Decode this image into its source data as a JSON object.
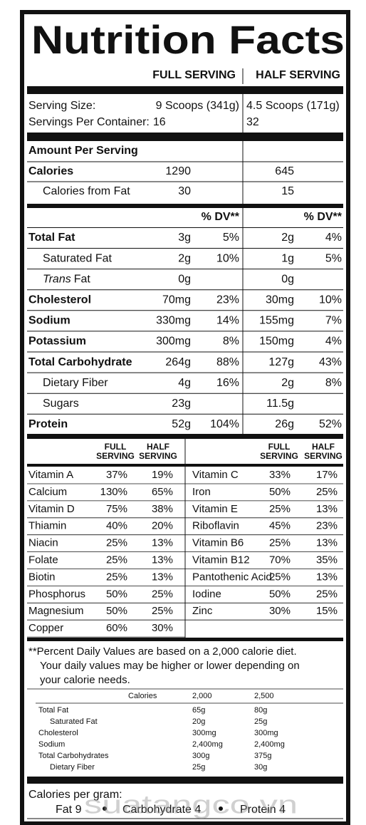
{
  "title": "Nutrition Facts",
  "column_headers": [
    "FULL SERVING",
    "HALF SERVING"
  ],
  "serving": {
    "size_label": "Serving Size:",
    "size_full": "9 Scoops (341g)",
    "size_half": "4.5 Scoops (171g)",
    "per_container_label": "Servings Per Container:",
    "per_container_full": "16",
    "per_container_half": "32"
  },
  "amount_per_serving": "Amount Per Serving",
  "calories": {
    "name": "Calories",
    "full": "1290",
    "half": "645"
  },
  "calories_from_fat": {
    "name": "Calories from Fat",
    "full": "30",
    "half": "15"
  },
  "dv_headers": [
    "% DV**",
    "% DV**"
  ],
  "nutrients": [
    {
      "name": "Total Fat",
      "full": "3g",
      "full_dv": "5%",
      "half": "2g",
      "half_dv": "4%",
      "style": "bold"
    },
    {
      "name": "Saturated Fat",
      "full": "2g",
      "full_dv": "10%",
      "half": "1g",
      "half_dv": "5%",
      "style": "indent"
    },
    {
      "name_prefix": "Trans",
      "name": "Fat",
      "full": "0g",
      "half": "0g",
      "style": "indent"
    },
    {
      "name": "Cholesterol",
      "full": "70mg",
      "full_dv": "23%",
      "half": "30mg",
      "half_dv": "10%",
      "style": "bold"
    },
    {
      "name": "Sodium",
      "full": "330mg",
      "full_dv": "14%",
      "half": "155mg",
      "half_dv": "7%",
      "style": "bold"
    },
    {
      "name": "Potassium",
      "full": "300mg",
      "full_dv": "8%",
      "half": "150mg",
      "half_dv": "4%",
      "style": "bold"
    },
    {
      "name": "Total Carbohydrate",
      "full": "264g",
      "full_dv": "88%",
      "half": "127g",
      "half_dv": "43%",
      "style": "bold"
    },
    {
      "name": "Dietary Fiber",
      "full": "4g",
      "full_dv": "16%",
      "half": "2g",
      "half_dv": "8%",
      "style": "indent"
    },
    {
      "name": "Sugars",
      "full": "23g",
      "half": "11.5g",
      "style": "indent"
    },
    {
      "name": "Protein",
      "full": "52g",
      "full_dv": "104%",
      "half": "26g",
      "half_dv": "52%",
      "style": "bold"
    }
  ],
  "vitamin_headers": [
    "FULL SERVING",
    "HALF SERVING",
    "FULL SERVING",
    "HALF SERVING"
  ],
  "vitamins_left": [
    [
      "Vitamin A",
      "37%",
      "19%"
    ],
    [
      "Calcium",
      "130%",
      "65%"
    ],
    [
      "Vitamin D",
      "75%",
      "38%"
    ],
    [
      "Thiamin",
      "40%",
      "20%"
    ],
    [
      "Niacin",
      "25%",
      "13%"
    ],
    [
      "Folate",
      "25%",
      "13%"
    ],
    [
      "Biotin",
      "25%",
      "13%"
    ],
    [
      "Phosphorus",
      "50%",
      "25%"
    ],
    [
      "Magnesium",
      "50%",
      "25%"
    ],
    [
      "Copper",
      "60%",
      "30%"
    ]
  ],
  "vitamins_right": [
    [
      "Vitamin C",
      "33%",
      "17%"
    ],
    [
      "Iron",
      "50%",
      "25%"
    ],
    [
      "Vitamin E",
      "25%",
      "13%"
    ],
    [
      "Riboflavin",
      "45%",
      "23%"
    ],
    [
      "Vitamin B6",
      "25%",
      "13%"
    ],
    [
      "Vitamin B12",
      "70%",
      "35%"
    ],
    [
      "Pantothenic Acid",
      "25%",
      "13%"
    ],
    [
      "Iodine",
      "50%",
      "25%"
    ],
    [
      "Zinc",
      "30%",
      "15%"
    ]
  ],
  "footnote": [
    "**Percent Daily Values are based on a 2,000 calorie diet.",
    "Your daily values may be higher or lower depending on",
    "your calorie needs."
  ],
  "dv_table": {
    "header": [
      "Calories",
      "2,000",
      "2,500"
    ],
    "rows": [
      {
        "name": "Total Fat",
        "a": "65g",
        "b": "80g",
        "style": "plain"
      },
      {
        "name": "Saturated Fat",
        "a": "20g",
        "b": "25g",
        "style": "indent"
      },
      {
        "name": "Cholesterol",
        "a": "300mg",
        "b": "300mg",
        "style": "plain"
      },
      {
        "name": "Sodium",
        "a": "2,400mg",
        "b": "2,400mg",
        "style": "plain"
      },
      {
        "name": "Total Carbohydrates",
        "a": "300g",
        "b": "375g",
        "style": "plain"
      },
      {
        "name": "Dietary Fiber",
        "a": "25g",
        "b": "30g",
        "style": "indent"
      }
    ]
  },
  "calories_per_gram": {
    "label": "Calories per gram:",
    "items": [
      "Fat 9",
      "Carbohydrate 4",
      "Protein 4"
    ]
  },
  "watermark": "suatangco.vn"
}
